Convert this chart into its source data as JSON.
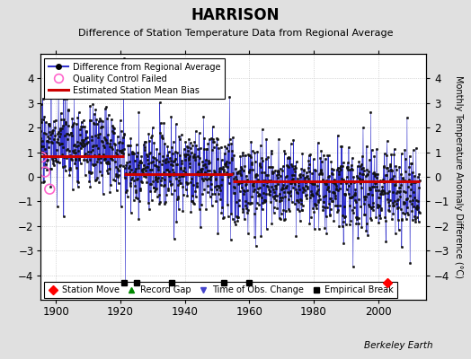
{
  "title": "HARRISON",
  "subtitle": "Difference of Station Temperature Data from Regional Average",
  "ylabel_right": "Monthly Temperature Anomaly Difference (°C)",
  "xlim": [
    1895,
    2015
  ],
  "ylim": [
    -5,
    5
  ],
  "yticks": [
    -4,
    -3,
    -2,
    -1,
    0,
    1,
    2,
    3,
    4
  ],
  "xticks": [
    1900,
    1920,
    1940,
    1960,
    1980,
    2000
  ],
  "background_color": "#e0e0e0",
  "plot_bg_color": "#ffffff",
  "grid_color": "#bbbbbb",
  "line_color": "#3333cc",
  "bias_color": "#cc0000",
  "data_color": "#111111",
  "qc_color": "#ff66cc",
  "watermark": "Berkeley Earth",
  "seed": 17,
  "n_points": 1400,
  "start_year": 1895,
  "end_year": 2013,
  "bias_segments": [
    {
      "start": 1895,
      "end": 1921,
      "bias": 0.85
    },
    {
      "start": 1921,
      "end": 1955,
      "bias": 0.1
    },
    {
      "start": 1955,
      "end": 2013,
      "bias": -0.2
    }
  ],
  "tall_spikes": [
    {
      "year": 1921,
      "val": 4.8
    },
    {
      "year": 1921.5,
      "val": -4.5
    },
    {
      "year": 2009,
      "val": 2.4
    },
    {
      "year": 2010,
      "val": -3.5
    }
  ],
  "qc_years": [
    1895.5,
    1896.5,
    1898.0
  ],
  "qc_vals": [
    0.8,
    0.2,
    -0.5
  ],
  "station_moves": [
    2003
  ],
  "empirical_breaks": [
    1921,
    1925,
    1936,
    1952,
    1960
  ],
  "marker_y": -4.3
}
